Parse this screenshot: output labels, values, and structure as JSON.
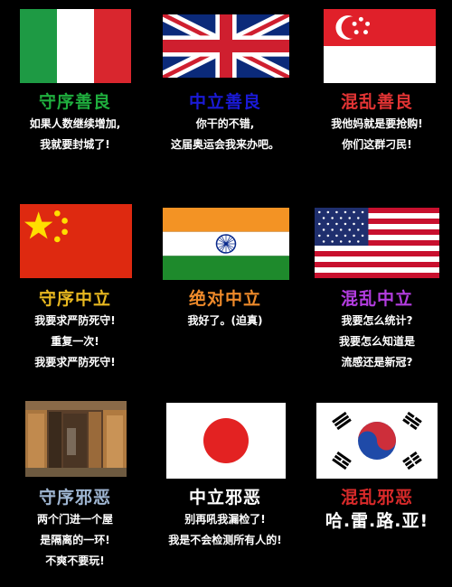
{
  "cells": [
    {
      "title": "守序善良",
      "title_color": "#1fae3e",
      "flag": "italy-flag",
      "lines": [
        "如果人数继续增加,",
        "我就要封城了!"
      ]
    },
    {
      "title": "中立善良",
      "title_color": "#1a1ad6",
      "flag": "uk-flag",
      "lines": [
        "你干的不错,",
        "这届奥运会我来办吧。"
      ]
    },
    {
      "title": "混乱善良",
      "title_color": "#e23434",
      "flag": "singapore-flag",
      "lines": [
        "我他妈就是要抢购!",
        "你们这群刁民!"
      ]
    },
    {
      "title": "守序中立",
      "title_color": "#e8b820",
      "flag": "china-flag",
      "lines": [
        "我要求严防死守!",
        "重复一次!",
        "我要求严防死守!"
      ]
    },
    {
      "title": "绝对中立",
      "title_color": "#ee8a2a",
      "flag": "india-flag",
      "lines": [
        "我好了。(迫真)"
      ]
    },
    {
      "title": "混乱中立",
      "title_color": "#b33de0",
      "flag": "usa-flag",
      "lines": [
        "我要怎么统计?",
        "我要怎么知道是",
        "流感还是新冠?"
      ]
    },
    {
      "title": "守序邪恶",
      "title_color": "#9fb6d2",
      "flag": "doors-photo",
      "lines": [
        "两个门进一个屋",
        "是隔离的一环!",
        "不爽不要玩!"
      ]
    },
    {
      "title": "中立邪恶",
      "title_color": "#ffffff",
      "flag": "japan-flag",
      "lines": [
        "别再吼我漏检了!",
        "我是不会检测所有人的!"
      ]
    },
    {
      "title": "混乱邪恶",
      "title_color": "#d82a2a",
      "flag": "korea-flag",
      "lines": [
        "哈.雷.路.亚!"
      ]
    }
  ]
}
